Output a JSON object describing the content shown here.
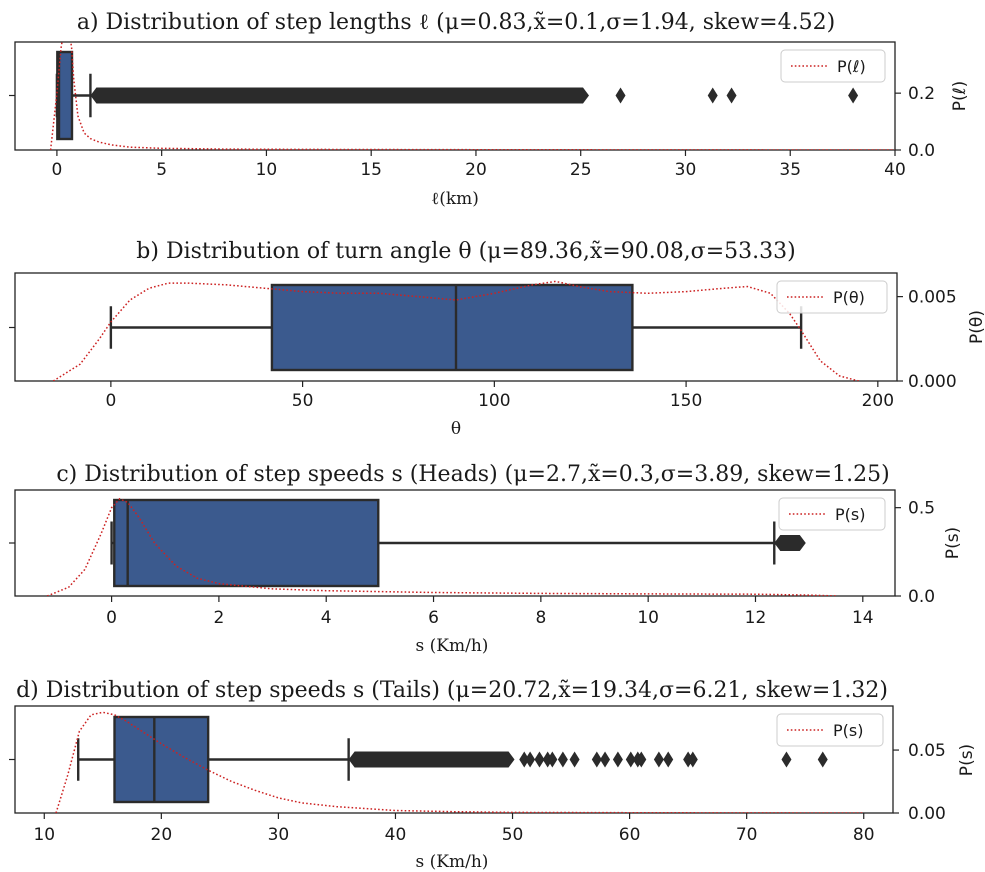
{
  "colors": {
    "box": "#3b5a8e",
    "edge": "#2b2b2b",
    "kde": "#cc2222"
  },
  "chart_data": [
    {
      "type": "box",
      "title": "a) Distribution of step lengths ℓ (μ=0.83,x̃=0.1,σ=1.94, skew=4.52)",
      "xlabel": "ℓ(km)",
      "ylabel": "P(ℓ)",
      "legend": "P(ℓ)",
      "legend_position": "top-right",
      "xlim": [
        -2,
        40
      ],
      "xticks": [
        0,
        5,
        10,
        15,
        20,
        25,
        30,
        35,
        40
      ],
      "box": {
        "whisker_low": 0.0,
        "q1": 0.02,
        "median": 0.1,
        "q3": 0.72,
        "whisker_high": 1.6
      },
      "outlier_band": [
        1.6,
        25.3
      ],
      "outliers": [
        26.9,
        31.3,
        32.2,
        38.0
      ],
      "kde": {
        "x": [
          -0.3,
          0.0,
          0.2,
          0.4,
          0.55,
          0.7,
          0.8,
          1.0,
          1.3,
          1.6,
          2.0,
          2.6,
          3.5,
          5,
          8,
          12,
          20,
          30,
          40
        ],
        "y": [
          0.0,
          0.2,
          0.36,
          0.45,
          0.44,
          0.36,
          0.25,
          0.12,
          0.06,
          0.04,
          0.028,
          0.018,
          0.01,
          0.006,
          0.003,
          0.002,
          0.001,
          0.0005,
          0.0
        ]
      },
      "y2lim": [
        0,
        0.38
      ],
      "y2ticks": [
        0.0,
        0.2
      ]
    },
    {
      "type": "box",
      "title": "b) Distribution of turn angle θ (μ=89.36,x̃=90.08,σ=53.33)",
      "xlabel": "θ",
      "ylabel": "P(θ)",
      "legend": "P(θ)",
      "legend_position": "top-right",
      "xlim": [
        -25,
        205
      ],
      "xticks": [
        0,
        50,
        100,
        150,
        200
      ],
      "box": {
        "whisker_low": 0.0,
        "q1": 42,
        "median": 90,
        "q3": 136,
        "whisker_high": 180
      },
      "outlier_band": null,
      "outliers": [],
      "kde": {
        "x": [
          -15,
          -8,
          -3,
          0,
          5,
          10,
          15,
          20,
          30,
          40,
          50,
          60,
          70,
          80,
          90,
          100,
          110,
          116,
          122,
          130,
          140,
          150,
          160,
          166,
          172,
          177,
          180,
          185,
          190,
          195
        ],
        "y": [
          0.0,
          0.001,
          0.0025,
          0.0035,
          0.0048,
          0.0055,
          0.0058,
          0.0058,
          0.0057,
          0.0055,
          0.0053,
          0.0052,
          0.0052,
          0.005,
          0.0048,
          0.0052,
          0.0057,
          0.0059,
          0.0056,
          0.0053,
          0.0052,
          0.0053,
          0.0055,
          0.0056,
          0.0052,
          0.004,
          0.003,
          0.0012,
          0.0003,
          0.0
        ]
      },
      "y2lim": [
        0,
        0.0064
      ],
      "y2ticks": [
        0.0,
        0.005
      ]
    },
    {
      "type": "box",
      "title": "c) Distribution of step speeds s (Heads) (μ=2.7,x̃=0.3,σ=3.89, skew=1.25)",
      "xlabel": "s (Km/h)",
      "ylabel": "P(s)",
      "legend": "P(s)",
      "legend_position": "top-right",
      "xlim": [
        -1.8,
        14.6
      ],
      "xticks": [
        0,
        2,
        4,
        6,
        8,
        10,
        12,
        14
      ],
      "box": {
        "whisker_low": 0.0,
        "q1": 0.05,
        "median": 0.3,
        "q3": 4.97,
        "whisker_high": 12.35
      },
      "outlier_band": [
        12.35,
        12.9
      ],
      "outliers": [],
      "kde": {
        "x": [
          -1.2,
          -0.8,
          -0.5,
          -0.2,
          0.0,
          0.15,
          0.3,
          0.5,
          0.8,
          1.2,
          1.6,
          2.0,
          3.0,
          4.0,
          5.0,
          6.0,
          8.0,
          10.0,
          12.0,
          13.0,
          13.5
        ],
        "y": [
          0.0,
          0.05,
          0.15,
          0.35,
          0.5,
          0.55,
          0.53,
          0.45,
          0.3,
          0.17,
          0.1,
          0.07,
          0.04,
          0.03,
          0.025,
          0.02,
          0.015,
          0.012,
          0.01,
          0.005,
          0.0
        ]
      },
      "y2lim": [
        0,
        0.6
      ],
      "y2ticks": [
        0.0,
        0.5
      ]
    },
    {
      "type": "box",
      "title": "d) Distribution of step speeds s (Tails) (μ=20.72,x̃=19.34,σ=6.21, skew=1.32)",
      "xlabel": "s (Km/h)",
      "ylabel": "P(s)",
      "legend": "P(s)",
      "legend_position": "top-right",
      "xlim": [
        7.5,
        82.5
      ],
      "xticks": [
        10,
        20,
        30,
        40,
        50,
        60,
        70,
        80
      ],
      "box": {
        "whisker_low": 12.9,
        "q1": 16,
        "median": 19.4,
        "q3": 24,
        "whisker_high": 36
      },
      "outlier_band": [
        36,
        50
      ],
      "outliers": [
        51,
        51.5,
        52.3,
        53,
        53.4,
        54.3,
        55.3,
        57.2,
        57.9,
        59,
        60.1,
        60.7,
        61,
        62.5,
        63.3,
        65,
        65.4,
        73.4,
        76.5
      ],
      "kde": {
        "x": [
          11,
          12,
          13,
          14,
          15,
          16,
          17,
          18,
          20,
          22,
          24,
          26,
          28,
          30,
          32,
          35,
          40,
          45,
          50,
          60,
          70,
          80
        ],
        "y": [
          0.0,
          0.03,
          0.065,
          0.078,
          0.08,
          0.078,
          0.073,
          0.067,
          0.055,
          0.044,
          0.034,
          0.025,
          0.018,
          0.012,
          0.008,
          0.005,
          0.002,
          0.001,
          0.0005,
          0.0002,
          0.0001,
          0.0
        ]
      },
      "y2lim": [
        0,
        0.085
      ],
      "y2ticks": [
        0.0,
        0.05
      ]
    }
  ]
}
